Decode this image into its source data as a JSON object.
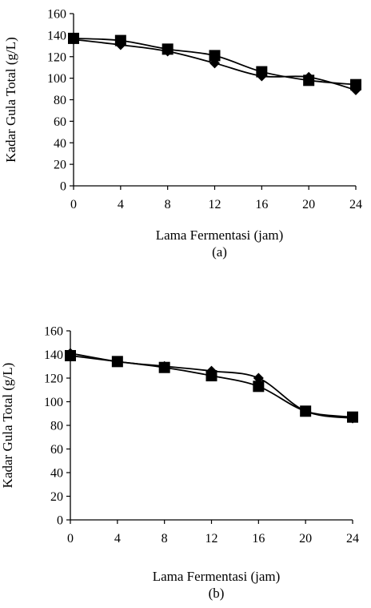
{
  "chart_data": [
    {
      "type": "line",
      "panel_label": "(a)",
      "xlabel": "Lama Fermentasi (jam)",
      "ylabel": "Kadar Gula Total (g/L)",
      "x": [
        0,
        4,
        8,
        12,
        16,
        20,
        24
      ],
      "xlim": [
        0,
        24
      ],
      "ylim": [
        0,
        160
      ],
      "yticks": [
        0,
        20,
        40,
        60,
        80,
        100,
        120,
        140,
        160
      ],
      "grid": false,
      "series": [
        {
          "marker": "diamond",
          "values": [
            136,
            131,
            125,
            114,
            102,
            101,
            89
          ]
        },
        {
          "marker": "square",
          "values": [
            137,
            135,
            127,
            121,
            106,
            98,
            94
          ]
        }
      ]
    },
    {
      "type": "line",
      "panel_label": "(b)",
      "xlabel": "Lama Fermentasi (jam)",
      "ylabel": "Kadar Gula Total (g/L)",
      "x": [
        0,
        4,
        8,
        12,
        16,
        20,
        24
      ],
      "xlim": [
        0,
        24
      ],
      "ylim": [
        0,
        160
      ],
      "yticks": [
        0,
        20,
        40,
        60,
        80,
        100,
        120,
        140,
        160
      ],
      "grid": false,
      "series": [
        {
          "marker": "diamond",
          "values": [
            141,
            134,
            130,
            126,
            120,
            92,
            86
          ]
        },
        {
          "marker": "square",
          "values": [
            139,
            134,
            129,
            122,
            113,
            92,
            87
          ]
        }
      ]
    }
  ]
}
